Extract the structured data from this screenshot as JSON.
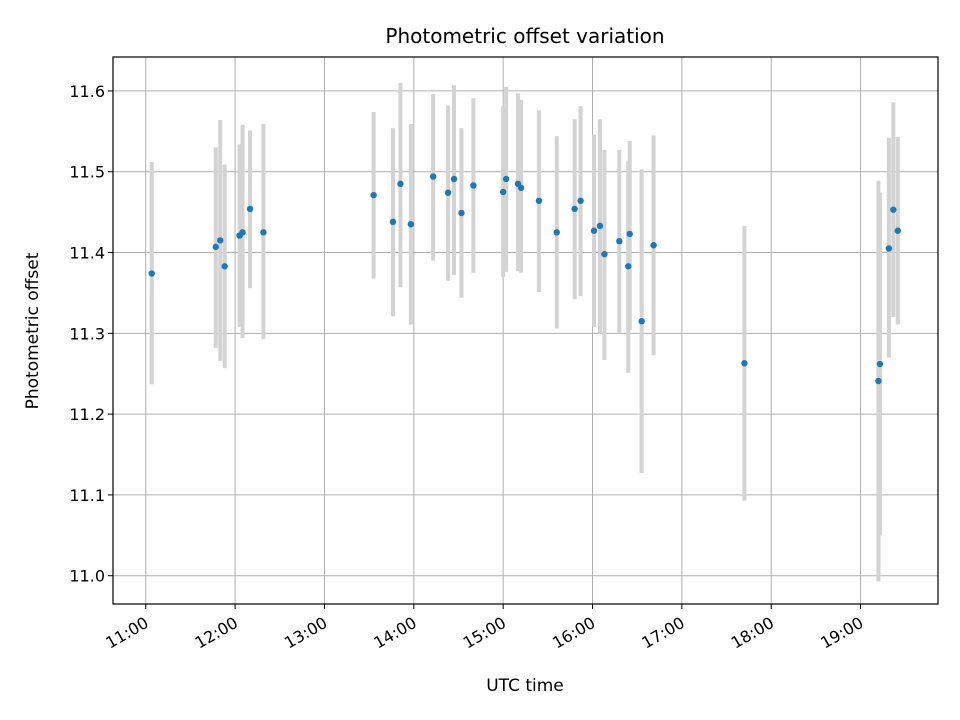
{
  "chart_data": {
    "type": "scatter",
    "title": "Photometric offset variation",
    "xlabel": "UTC time",
    "ylabel": "Photometric offset",
    "grid": true,
    "xlim": [
      "10:38",
      "19:52"
    ],
    "ylim": [
      10.965,
      11.642
    ],
    "x_ticks": [
      "11:00",
      "12:00",
      "13:00",
      "14:00",
      "15:00",
      "16:00",
      "17:00",
      "18:00",
      "19:00"
    ],
    "y_ticks": [
      11.0,
      11.1,
      11.2,
      11.3,
      11.4,
      11.5,
      11.6
    ],
    "colors": {
      "point": "#1f77b4",
      "errorbar": "#d3d3d3",
      "grid": "#b0b0b0"
    },
    "series": [
      {
        "points": [
          {
            "x": "11:04",
            "y": 11.374,
            "ylo": 11.237,
            "yhi": 11.512
          },
          {
            "x": "11:47",
            "y": 11.407,
            "ylo": 11.282,
            "yhi": 11.53
          },
          {
            "x": "11:50",
            "y": 11.415,
            "ylo": 11.266,
            "yhi": 11.564
          },
          {
            "x": "11:53",
            "y": 11.383,
            "ylo": 11.257,
            "yhi": 11.509
          },
          {
            "x": "12:03",
            "y": 11.421,
            "ylo": 11.308,
            "yhi": 11.534
          },
          {
            "x": "12:05",
            "y": 11.425,
            "ylo": 11.294,
            "yhi": 11.558
          },
          {
            "x": "12:10",
            "y": 11.454,
            "ylo": 11.356,
            "yhi": 11.551
          },
          {
            "x": "12:19",
            "y": 11.425,
            "ylo": 11.293,
            "yhi": 11.559
          },
          {
            "x": "13:33",
            "y": 11.471,
            "ylo": 11.368,
            "yhi": 11.574
          },
          {
            "x": "13:46",
            "y": 11.438,
            "ylo": 11.321,
            "yhi": 11.554
          },
          {
            "x": "13:51",
            "y": 11.485,
            "ylo": 11.357,
            "yhi": 11.61
          },
          {
            "x": "13:58",
            "y": 11.435,
            "ylo": 11.311,
            "yhi": 11.559
          },
          {
            "x": "14:13",
            "y": 11.494,
            "ylo": 11.39,
            "yhi": 11.596
          },
          {
            "x": "14:23",
            "y": 11.474,
            "ylo": 11.365,
            "yhi": 11.582
          },
          {
            "x": "14:27",
            "y": 11.491,
            "ylo": 11.372,
            "yhi": 11.607
          },
          {
            "x": "14:32",
            "y": 11.449,
            "ylo": 11.344,
            "yhi": 11.554
          },
          {
            "x": "14:40",
            "y": 11.483,
            "ylo": 11.375,
            "yhi": 11.591
          },
          {
            "x": "15:00",
            "y": 11.475,
            "ylo": 11.37,
            "yhi": 11.581
          },
          {
            "x": "15:02",
            "y": 11.491,
            "ylo": 11.376,
            "yhi": 11.605
          },
          {
            "x": "15:10",
            "y": 11.485,
            "ylo": 11.377,
            "yhi": 11.597
          },
          {
            "x": "15:12",
            "y": 11.48,
            "ylo": 11.375,
            "yhi": 11.589
          },
          {
            "x": "15:24",
            "y": 11.464,
            "ylo": 11.351,
            "yhi": 11.576
          },
          {
            "x": "15:36",
            "y": 11.425,
            "ylo": 11.306,
            "yhi": 11.544
          },
          {
            "x": "15:48",
            "y": 11.454,
            "ylo": 11.342,
            "yhi": 11.565
          },
          {
            "x": "15:52",
            "y": 11.464,
            "ylo": 11.346,
            "yhi": 11.581
          },
          {
            "x": "16:01",
            "y": 11.427,
            "ylo": 11.308,
            "yhi": 11.546
          },
          {
            "x": "16:05",
            "y": 11.433,
            "ylo": 11.3,
            "yhi": 11.565
          },
          {
            "x": "16:08",
            "y": 11.398,
            "ylo": 11.267,
            "yhi": 11.527
          },
          {
            "x": "16:18",
            "y": 11.414,
            "ylo": 11.301,
            "yhi": 11.527
          },
          {
            "x": "16:24",
            "y": 11.383,
            "ylo": 11.251,
            "yhi": 11.513
          },
          {
            "x": "16:25",
            "y": 11.423,
            "ylo": 11.304,
            "yhi": 11.538
          },
          {
            "x": "16:33",
            "y": 11.315,
            "ylo": 11.127,
            "yhi": 11.503
          },
          {
            "x": "16:41",
            "y": 11.409,
            "ylo": 11.273,
            "yhi": 11.545
          },
          {
            "x": "17:42",
            "y": 11.263,
            "ylo": 11.093,
            "yhi": 11.433
          },
          {
            "x": "19:12",
            "y": 11.241,
            "ylo": 10.993,
            "yhi": 11.489
          },
          {
            "x": "19:13",
            "y": 11.262,
            "ylo": 11.05,
            "yhi": 11.474
          },
          {
            "x": "19:19",
            "y": 11.405,
            "ylo": 11.27,
            "yhi": 11.542
          },
          {
            "x": "19:22",
            "y": 11.453,
            "ylo": 11.32,
            "yhi": 11.586
          },
          {
            "x": "19:25",
            "y": 11.427,
            "ylo": 11.311,
            "yhi": 11.543
          }
        ]
      }
    ]
  }
}
